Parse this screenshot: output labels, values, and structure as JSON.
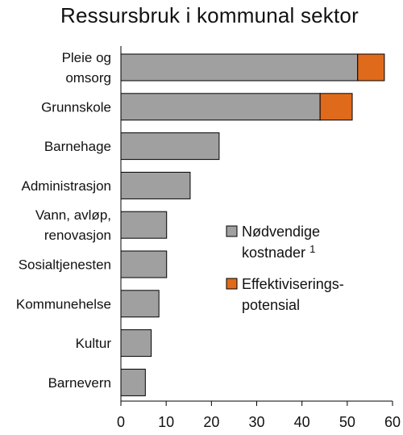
{
  "chart_data": {
    "type": "bar",
    "orientation": "horizontal",
    "stacked": true,
    "title": "Ressursbruk i kommunal sektor",
    "categories": [
      [
        "Pleie og",
        "omsorg"
      ],
      [
        "Grunnskole"
      ],
      [
        "Barnehage"
      ],
      [
        "Administrasjon"
      ],
      [
        "Vann, avløp,",
        "renovasjon"
      ],
      [
        "Sosialtjenesten"
      ],
      [
        "Kommunehelse"
      ],
      [
        "Kultur"
      ],
      [
        "Barnevern"
      ]
    ],
    "series": [
      {
        "name": "Nødvendige kostnader",
        "name_superscript": "1",
        "color": "#a0a0a0",
        "values": [
          52.3,
          44.0,
          21.7,
          15.3,
          10.1,
          10.1,
          8.4,
          6.7,
          5.4
        ]
      },
      {
        "name": "Effektiviserings-potensial",
        "color": "#e06a1b",
        "values": [
          5.9,
          7.1,
          0,
          0,
          0,
          0,
          0,
          0,
          0
        ]
      }
    ],
    "xlim": [
      0,
      60
    ],
    "xticks": [
      0,
      10,
      20,
      30,
      40,
      50,
      60
    ],
    "grid": false,
    "legend": {
      "placement": "right",
      "entries": [
        {
          "lines": [
            "Nødvendige",
            "kostnader"
          ],
          "superscript": "1",
          "color": "#a0a0a0"
        },
        {
          "lines": [
            "Effektiviserings-",
            "potensial"
          ],
          "color": "#e06a1b"
        }
      ]
    }
  }
}
